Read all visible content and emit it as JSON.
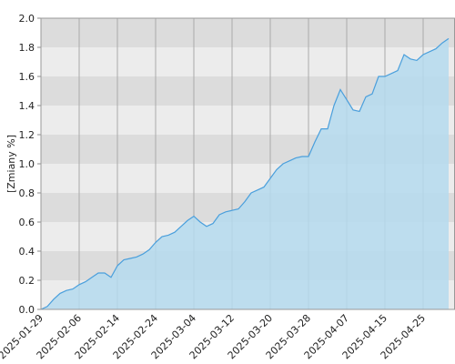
{
  "chart_data": {
    "type": "area",
    "ylabel": "[Zmiany %]",
    "categories": [
      "2025-01-29",
      null,
      null,
      null,
      null,
      null,
      "2025-02-06",
      null,
      null,
      null,
      null,
      null,
      "2025-02-14",
      null,
      null,
      null,
      null,
      null,
      "2025-02-24",
      null,
      null,
      null,
      null,
      null,
      "2025-03-04",
      null,
      null,
      null,
      null,
      null,
      "2025-03-12",
      null,
      null,
      null,
      null,
      null,
      "2025-03-20",
      null,
      null,
      null,
      null,
      null,
      "2025-03-28",
      null,
      null,
      null,
      null,
      null,
      "2025-04-07",
      null,
      null,
      null,
      null,
      null,
      "2025-04-15",
      null,
      null,
      null,
      null,
      null,
      "2025-04-25",
      null,
      null,
      null,
      null
    ],
    "values": [
      0.0,
      0.02,
      0.07,
      0.11,
      0.13,
      0.14,
      0.17,
      0.19,
      0.22,
      0.25,
      0.25,
      0.22,
      0.3,
      0.34,
      0.35,
      0.36,
      0.38,
      0.41,
      0.46,
      0.5,
      0.51,
      0.53,
      0.57,
      0.61,
      0.64,
      0.6,
      0.57,
      0.59,
      0.65,
      0.67,
      0.68,
      0.69,
      0.74,
      0.8,
      0.82,
      0.84,
      0.9,
      0.96,
      1.0,
      1.02,
      1.04,
      1.05,
      1.05,
      1.15,
      1.24,
      1.24,
      1.4,
      1.51,
      1.44,
      1.37,
      1.36,
      1.46,
      1.48,
      1.6,
      1.6,
      1.62,
      1.64,
      1.75,
      1.72,
      1.71,
      1.75,
      1.77,
      1.79,
      1.83,
      1.86
    ],
    "color": "#4a9fdc",
    "fill": "#b5dbee",
    "ylim": [
      0,
      2
    ],
    "yticks": [
      {
        "value": 0,
        "label": "0.0"
      },
      0.2,
      0.4,
      0.6,
      0.8,
      {
        "value": 1,
        "label": "1.0"
      },
      1.2,
      1.4,
      1.6,
      1.8,
      {
        "value": 2,
        "label": "2.0"
      }
    ],
    "grid": true
  }
}
